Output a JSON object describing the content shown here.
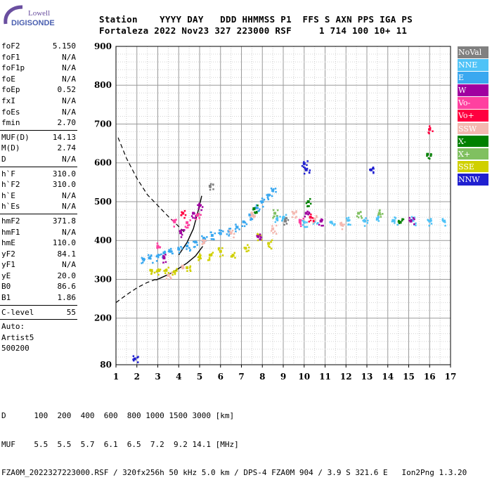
{
  "brand": {
    "line1": "Lowell",
    "line2": "DIGISONDE"
  },
  "header": {
    "line1": "Station    YYYY DAY   DDD HHMMSS P1  FFS S AXN PPS IGA PS",
    "line2": "Fortaleza 2022 Nov23 327 223000 RSF     1 714 100 10+ 11"
  },
  "params": {
    "group1": [
      {
        "name": "foF2",
        "value": "5.150"
      },
      {
        "name": "foF1",
        "value": "N/A"
      },
      {
        "name": "foF1p",
        "value": "N/A"
      },
      {
        "name": "foE",
        "value": "N/A"
      },
      {
        "name": "foEp",
        "value": "0.52"
      },
      {
        "name": "fxI",
        "value": "N/A"
      },
      {
        "name": "foEs",
        "value": "N/A"
      },
      {
        "name": "fmin",
        "value": "2.70"
      }
    ],
    "group2": [
      {
        "name": "MUF(D)",
        "value": "14.13"
      },
      {
        "name": "M(D)",
        "value": "2.74"
      },
      {
        "name": "D",
        "value": "N/A"
      }
    ],
    "group3": [
      {
        "name": "h`F",
        "value": "310.0"
      },
      {
        "name": "h`F2",
        "value": "310.0"
      },
      {
        "name": "h`E",
        "value": "N/A"
      },
      {
        "name": "h`Es",
        "value": "N/A"
      }
    ],
    "group4": [
      {
        "name": "hmF2",
        "value": "371.8"
      },
      {
        "name": "hmF1",
        "value": "N/A"
      },
      {
        "name": "hmE",
        "value": "110.0"
      },
      {
        "name": "yF2",
        "value": "84.1"
      },
      {
        "name": "yF1",
        "value": "N/A"
      },
      {
        "name": "yE",
        "value": "20.0"
      },
      {
        "name": "B0",
        "value": "86.6"
      },
      {
        "name": "B1",
        "value": "1.86"
      }
    ],
    "group5": [
      {
        "name": "C-level",
        "value": "55"
      }
    ],
    "auto": [
      "Auto:",
      "Artist5",
      "500200"
    ]
  },
  "legend": [
    {
      "label": "NoVal",
      "color": "#808080"
    },
    {
      "label": "NNE",
      "color": "#4fc3f7"
    },
    {
      "label": "E",
      "color": "#3aa8f0"
    },
    {
      "label": "W",
      "color": "#a000a0"
    },
    {
      "label": "Vo-",
      "color": "#ff40a0"
    },
    {
      "label": "Vo+",
      "color": "#ff0040"
    },
    {
      "label": "SSW",
      "color": "#f4b8b0"
    },
    {
      "label": "X-",
      "color": "#008000"
    },
    {
      "label": "X+",
      "color": "#80c060"
    },
    {
      "label": "SSE",
      "color": "#d0d000"
    },
    {
      "label": "NNW",
      "color": "#2020d0"
    }
  ],
  "footer": {
    "line1": "D      100  200  400  600  800 1000 1500 3000 [km]",
    "line2": "MUF    5.5  5.5  5.7  6.1  6.5  7.2  9.2 14.1 [MHz]",
    "line3": "FZA0M_2022327223000.RSF / 320fx256h 50 kHz 5.0 km / DPS-4 FZA0M 904 / 3.9 S 321.6 E   Ion2Png 1.3.20"
  },
  "chart_data": {
    "type": "scatter",
    "title": "",
    "xlabel": "",
    "ylabel": "",
    "xlim": [
      1,
      17
    ],
    "ylim": [
      80,
      900
    ],
    "x_ticks": [
      1,
      2,
      3,
      4,
      5,
      6,
      7,
      8,
      9,
      10,
      11,
      12,
      13,
      14,
      15,
      16,
      17
    ],
    "y_ticks": [
      80,
      200,
      300,
      400,
      500,
      600,
      700,
      800,
      900
    ],
    "grid": true,
    "series": [
      {
        "name": "E",
        "color": "#3aa8f0",
        "points": [
          [
            2.3,
            352
          ],
          [
            2.6,
            355
          ],
          [
            3.0,
            360
          ],
          [
            3.3,
            368
          ],
          [
            3.6,
            372
          ],
          [
            4.0,
            378
          ],
          [
            4.4,
            386
          ],
          [
            4.8,
            396
          ],
          [
            5.2,
            406
          ],
          [
            5.6,
            413
          ],
          [
            6.0,
            418
          ],
          [
            6.4,
            424
          ],
          [
            6.8,
            434
          ],
          [
            7.1,
            448
          ],
          [
            7.4,
            466
          ],
          [
            7.7,
            484
          ],
          [
            8.0,
            500
          ],
          [
            8.3,
            517
          ],
          [
            8.5,
            529
          ]
        ]
      },
      {
        "name": "NNE",
        "color": "#4fc3f7",
        "points": [
          [
            8.7,
            455
          ],
          [
            9.0,
            458
          ],
          [
            10.0,
            447
          ],
          [
            10.5,
            450
          ],
          [
            11.3,
            447
          ],
          [
            12.1,
            452
          ],
          [
            12.9,
            450
          ],
          [
            13.5,
            456
          ],
          [
            14.3,
            451
          ],
          [
            15.2,
            452
          ],
          [
            16.0,
            450
          ],
          [
            16.7,
            450
          ]
        ]
      },
      {
        "name": "SSE",
        "color": "#d0d000",
        "points": [
          [
            2.7,
            323
          ],
          [
            3.0,
            322
          ],
          [
            3.4,
            323
          ],
          [
            3.8,
            320
          ],
          [
            4.4,
            330
          ],
          [
            5.0,
            358
          ],
          [
            5.5,
            362
          ],
          [
            6.0,
            372
          ],
          [
            6.6,
            362
          ],
          [
            7.2,
            380
          ],
          [
            7.8,
            412
          ],
          [
            8.3,
            392
          ]
        ]
      },
      {
        "name": "SSW",
        "color": "#f4b8b0",
        "points": [
          [
            3.5,
            310
          ],
          [
            4.2,
            330
          ],
          [
            5.2,
            395
          ],
          [
            6.5,
            420
          ],
          [
            7.5,
            470
          ],
          [
            8.5,
            430
          ],
          [
            9.5,
            470
          ],
          [
            10.5,
            455
          ],
          [
            11.8,
            440
          ]
        ]
      },
      {
        "name": "W",
        "color": "#a000a0",
        "points": [
          [
            3.3,
            355
          ],
          [
            4.1,
            420
          ],
          [
            4.7,
            470
          ],
          [
            5.0,
            490
          ],
          [
            7.8,
            410
          ],
          [
            10.1,
            470
          ],
          [
            10.8,
            450
          ],
          [
            15.1,
            450
          ]
        ]
      },
      {
        "name": "Vo-",
        "color": "#ff40a0",
        "points": [
          [
            3.0,
            385
          ],
          [
            3.8,
            448
          ],
          [
            4.4,
            446
          ],
          [
            4.9,
            465
          ],
          [
            9.8,
            448
          ]
        ]
      },
      {
        "name": "Vo+",
        "color": "#ff0040",
        "points": [
          [
            4.2,
            470
          ],
          [
            10.3,
            460
          ],
          [
            16.0,
            686
          ]
        ]
      },
      {
        "name": "X-",
        "color": "#008000",
        "points": [
          [
            7.6,
            482
          ],
          [
            10.2,
            500
          ],
          [
            14.6,
            447
          ],
          [
            15.9,
            622
          ]
        ]
      },
      {
        "name": "X+",
        "color": "#80c060",
        "points": [
          [
            8.6,
            470
          ],
          [
            12.6,
            470
          ],
          [
            13.6,
            470
          ]
        ]
      },
      {
        "name": "NNW",
        "color": "#2020d0",
        "points": [
          [
            1.9,
            95
          ],
          [
            10.0,
            598
          ],
          [
            10.1,
            582
          ],
          [
            13.2,
            582
          ]
        ]
      },
      {
        "name": "NoVal",
        "color": "#808080",
        "points": [
          [
            5.5,
            540
          ],
          [
            9.1,
            450
          ]
        ]
      }
    ],
    "trace_lines": {
      "dashed": [
        [
          [
            1.1,
            665
          ],
          [
            1.5,
            612
          ],
          [
            2.0,
            560
          ],
          [
            2.5,
            518
          ],
          [
            3.0,
            490
          ],
          [
            3.5,
            462
          ],
          [
            4.0,
            436
          ],
          [
            4.3,
            420
          ]
        ],
        [
          [
            1.0,
            240
          ],
          [
            1.5,
            260
          ],
          [
            2.0,
            278
          ],
          [
            2.5,
            292
          ],
          [
            2.9,
            300
          ]
        ]
      ],
      "solid": [
        [
          [
            2.9,
            298
          ],
          [
            3.2,
            305
          ],
          [
            3.6,
            315
          ],
          [
            4.0,
            328
          ],
          [
            4.4,
            342
          ],
          [
            4.8,
            360
          ],
          [
            5.15,
            385
          ]
        ],
        [
          [
            4.0,
            363
          ],
          [
            4.4,
            395
          ],
          [
            4.7,
            430
          ],
          [
            4.95,
            480
          ],
          [
            5.1,
            515
          ]
        ]
      ]
    }
  }
}
